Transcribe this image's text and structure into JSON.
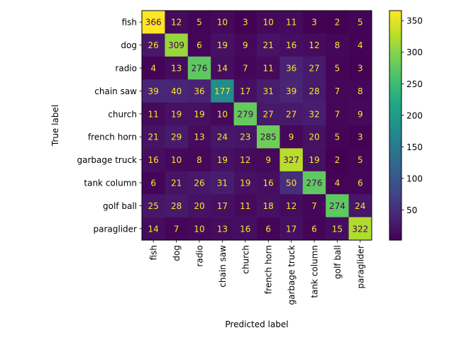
{
  "chart_data": {
    "type": "heatmap",
    "title": "",
    "xlabel": "Predicted label",
    "ylabel": "True label",
    "x_categories": [
      "fish",
      "dog",
      "radio",
      "chain saw",
      "church",
      "french horn",
      "garbage truck",
      "tank column",
      "golf ball",
      "paraglider"
    ],
    "y_categories": [
      "fish",
      "dog",
      "radio",
      "chain saw",
      "church",
      "french horn",
      "garbage truck",
      "tank column",
      "golf ball",
      "paraglider"
    ],
    "values": [
      [
        366,
        12,
        5,
        10,
        3,
        10,
        11,
        3,
        2,
        5
      ],
      [
        26,
        309,
        6,
        19,
        9,
        21,
        16,
        12,
        8,
        4
      ],
      [
        4,
        13,
        276,
        14,
        7,
        11,
        36,
        27,
        5,
        3
      ],
      [
        39,
        40,
        36,
        177,
        17,
        31,
        39,
        28,
        7,
        8
      ],
      [
        11,
        19,
        19,
        10,
        279,
        27,
        27,
        32,
        7,
        9
      ],
      [
        21,
        29,
        13,
        24,
        23,
        285,
        9,
        20,
        5,
        3
      ],
      [
        16,
        10,
        8,
        19,
        12,
        9,
        327,
        19,
        2,
        5
      ],
      [
        6,
        21,
        26,
        31,
        19,
        16,
        50,
        276,
        4,
        6
      ],
      [
        25,
        28,
        20,
        17,
        11,
        18,
        12,
        7,
        274,
        24
      ],
      [
        14,
        7,
        10,
        13,
        16,
        6,
        17,
        6,
        15,
        322
      ]
    ],
    "colormap": "viridis",
    "vmin": 2,
    "vmax": 366,
    "colorbar_ticks": [
      50,
      100,
      150,
      200,
      250,
      300,
      350
    ],
    "colorbar_tick_labels": [
      "50",
      "100",
      "150",
      "200",
      "250",
      "300",
      "350"
    ],
    "text_color_dark": "#440154",
    "text_color_light": "#fde725",
    "grid": false,
    "legend": "colorbar-right"
  }
}
